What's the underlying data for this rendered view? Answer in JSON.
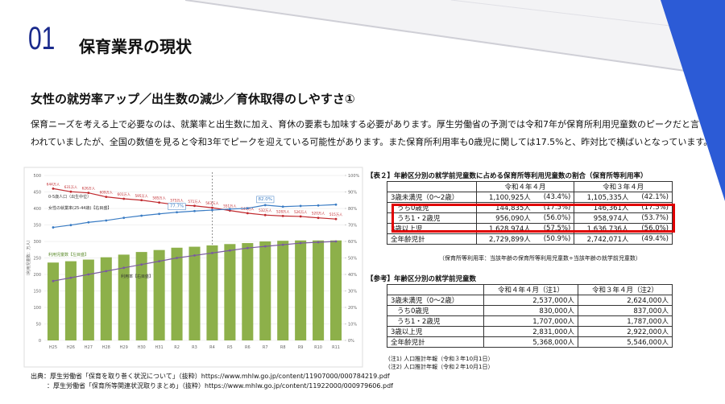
{
  "header": {
    "number": "01",
    "title": "保育業界の現状"
  },
  "subtitle": "女性の就労率アップ／出生数の減少／育休取得のしやすさ①",
  "body": {
    "lines": [
      "保育ニーズを考える上で必要なのは、就業率と出生数に加え、育休の要素も加味する必要があります。厚生労働省の予測では令和7年が保育所利用児童数のピークだと言",
      "われていましたが、全国の数値を見ると令和3年でピークを迎えている可能性があります。また保育所利用率も0歳児に関しては17.5%と、昨対比で横ばいとなっています。"
    ]
  },
  "chart_data": {
    "type": "combo",
    "y_label": "（利用児童数：万人）",
    "categories": [
      "H25",
      "H26",
      "H27",
      "H28",
      "H29",
      "H30",
      "H31",
      "R2",
      "R3",
      "R4",
      "R5",
      "R6",
      "R7",
      "R8",
      "R9",
      "R10",
      "R11"
    ],
    "ylim": [
      0,
      500
    ],
    "yticks": [
      0,
      50,
      100,
      150,
      200,
      250,
      300,
      350,
      400,
      450,
      500
    ],
    "y2lim": [
      0,
      100
    ],
    "y2ticks": [
      {
        "value": 0,
        "label": "0%"
      },
      {
        "value": 10,
        "label": "10%"
      },
      {
        "value": 20,
        "label": "20%"
      },
      {
        "value": 30,
        "label": "30%"
      },
      {
        "value": 40,
        "label": "40%"
      },
      {
        "value": 50,
        "label": "50%"
      },
      {
        "value": 60,
        "label": "60%"
      },
      {
        "value": 70,
        "label": "70%"
      },
      {
        "value": 80,
        "label": "80%"
      },
      {
        "value": 90,
        "label": "90%"
      },
      {
        "value": 100,
        "label": "100%"
      }
    ],
    "y3lim": [
      0,
      700
    ],
    "series": [
      {
        "name": "利用児童数【左目盛】",
        "type": "bar",
        "color": "#8db04a",
        "values": [
          236,
          240,
          245,
          252,
          260,
          268,
          274,
          281,
          284,
          288,
          292,
          295,
          300,
          302,
          303,
          303,
          303
        ]
      },
      {
        "name": "0-5歳人口（出生中位）",
        "type": "line",
        "axis": "y3",
        "color": "#c0282d",
        "values": [
          644,
          631,
          626,
          609,
          601,
          595,
          585,
          575,
          571,
          563,
          551,
          540,
          532,
          528,
          526,
          520,
          515
        ],
        "value_labels": [
          "644万人",
          "631万人",
          "626万人",
          "609万人",
          "601万人",
          "595万人",
          "585万人",
          "575万人",
          "571万人",
          "563万人",
          "551万人",
          "540万人",
          "532万人",
          "528万人",
          "526万人",
          "520万人",
          "515万人"
        ]
      },
      {
        "name": "女性の就業率(25-44歳)【右目盛】",
        "type": "line",
        "axis": "y2",
        "color": "#3a7cc4",
        "values": [
          68.5,
          69.9,
          71.6,
          72.7,
          74.3,
          75.6,
          76.7,
          77.7,
          78.4,
          79.0,
          79.6,
          80.1,
          82.0,
          81.1,
          81.5,
          81.8,
          82.3
        ],
        "value_labels": [
          null,
          null,
          null,
          null,
          null,
          null,
          null,
          "77.7%",
          null,
          null,
          null,
          null,
          "82.0%",
          null,
          null,
          null,
          null
        ]
      },
      {
        "name": "利用率【右目盛】",
        "type": "line",
        "axis": "y2",
        "color": "#7a5aa0",
        "values": [
          36,
          38,
          40,
          42,
          44,
          46,
          48,
          50,
          51.5,
          53,
          54.5,
          56,
          57,
          58,
          59,
          59.5,
          60
        ]
      }
    ]
  },
  "table1": {
    "caption": "【表２】年齢区分別の就学前児童数に占める保育所等利用児童数の割合（保育所等利用率）",
    "header": [
      "令和４年４月",
      "令和３年４月"
    ],
    "rows": [
      [
        "3歳未満児（0～2歳）",
        "1,100,925人",
        "(43.4%)",
        "1,105,335人",
        "(42.1%)"
      ],
      [
        "うち0歳児",
        "144,835人",
        "(17.5%)",
        "146,361人",
        "(17.5%)"
      ],
      [
        "うち1・2歳児",
        "956,090人",
        "(56.0%)",
        "958,974人",
        "(53.7%)"
      ],
      [
        "3歳以上児",
        "1,628,974人",
        "(57.5%)",
        "1,636,736人",
        "(56.0%)"
      ],
      [
        "全年齢児計",
        "2,729,899人",
        "(50.9%)",
        "2,742,071人",
        "(49.4%)"
      ]
    ],
    "note": "（保育所等利用率：当該年齢の保育所等利用児童数÷当該年齢の就学前児童数）"
  },
  "table2": {
    "caption": "【参考】年齢区分別の就学前児童数",
    "header": [
      "令和４年４月（注1）",
      "令和３年４月（注2）"
    ],
    "rows": [
      [
        "3歳未満児（0～2歳）",
        "2,537,000人",
        "2,624,000人"
      ],
      [
        "うち0歳児",
        "830,000人",
        "837,000人"
      ],
      [
        "うち1・2歳児",
        "1,707,000人",
        "1,787,000人"
      ],
      [
        "3歳以上児",
        "2,831,000人",
        "2,922,000人"
      ],
      [
        "全年齢児計",
        "5,368,000人",
        "5,546,000人"
      ]
    ],
    "notes": [
      "(注1) 人口推計年報（令和３年10月1日）",
      "(注2) 人口推計年報（令和２年10月1日）"
    ]
  },
  "sources": [
    "出典：厚生労働省「保育を取り巻く状況について」（抜粋）https://www.mhlw.go.jp/content/11907000/000784219.pdf",
    "：厚生労働省「保育所等関連状況取りまとめ」（抜粋）https://www.mhlw.go.jp/content/11922000/000979606.pdf"
  ]
}
